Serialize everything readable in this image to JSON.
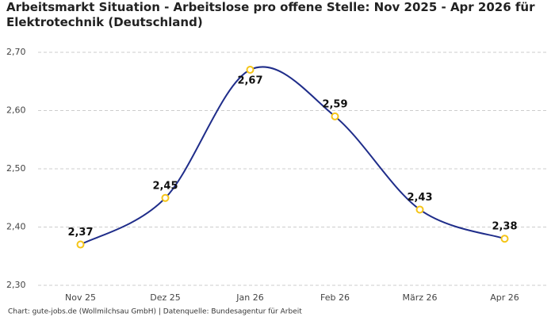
{
  "chart_data": {
    "type": "line",
    "title": "Arbeitsmarkt Situation - Arbeitslose pro offene Stelle: Nov 2025 - Apr 2026 für Elektrotechnik (Deutschland)",
    "categories": [
      "Nov 25",
      "Dez 25",
      "Jan 26",
      "Feb 26",
      "März 26",
      "Apr 26"
    ],
    "values": [
      2.37,
      2.45,
      2.67,
      2.59,
      2.43,
      2.38
    ],
    "value_labels": [
      "2,37",
      "2,45",
      "2,67",
      "2,59",
      "2,43",
      "2,38"
    ],
    "color": "#1f2d8a",
    "marker_color": "#f5c518",
    "ylim": [
      2.3,
      2.7
    ],
    "yticks": [
      {
        "value": 2.3,
        "label": "2,30"
      },
      {
        "value": 2.4,
        "label": "2,40"
      },
      {
        "value": 2.5,
        "label": "2,50"
      },
      {
        "value": 2.6,
        "label": "2,60"
      },
      {
        "value": 2.7,
        "label": "2,70"
      }
    ],
    "grid": true,
    "source": "Chart: gute-jobs.de (Wollmilchsau GmbH) | Datenquelle: Bundesagentur für Arbeit"
  }
}
